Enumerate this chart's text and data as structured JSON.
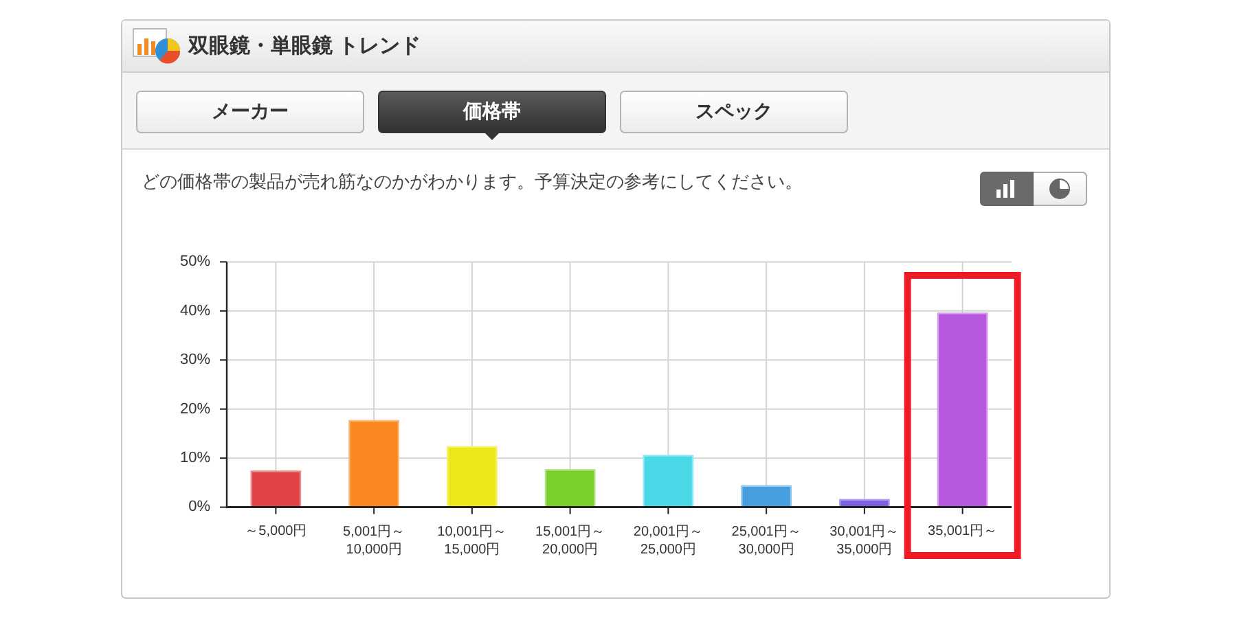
{
  "chart_data": {
    "type": "bar",
    "title": "双眼鏡・単眼鏡 トレンド",
    "subtitle": "どの価格帯の製品が売れ筋なのかがわかります。予算決定の参考にしてください。",
    "annotations": [
      "メーカー",
      "価格帯",
      "スペック"
    ],
    "categories": [
      "～5,000円",
      "5,001円～\n10,000円",
      "10,001円～\n15,000円",
      "15,001円～\n20,000円",
      "20,001円～\n25,000円",
      "25,001円～\n30,000円",
      "30,001円～\n35,000円",
      "35,001円～"
    ],
    "values": [
      7.3,
      17.6,
      12.3,
      7.6,
      10.5,
      4.3,
      1.5,
      39.5
    ],
    "colors": [
      "#e04343",
      "#f7871e",
      "#ede81a",
      "#7ad12e",
      "#48d8e6",
      "#469edf",
      "#7a5fdf",
      "#b758de"
    ],
    "ylim": [
      0,
      50
    ],
    "yticks": [
      {
        "value": 0,
        "label": "0%"
      },
      {
        "value": 10,
        "label": "10%"
      },
      {
        "value": 20,
        "label": "20%"
      },
      {
        "value": 30,
        "label": "30%"
      },
      {
        "value": 40,
        "label": "40%"
      },
      {
        "value": 50,
        "label": "50%"
      }
    ],
    "grid": true
  }
}
